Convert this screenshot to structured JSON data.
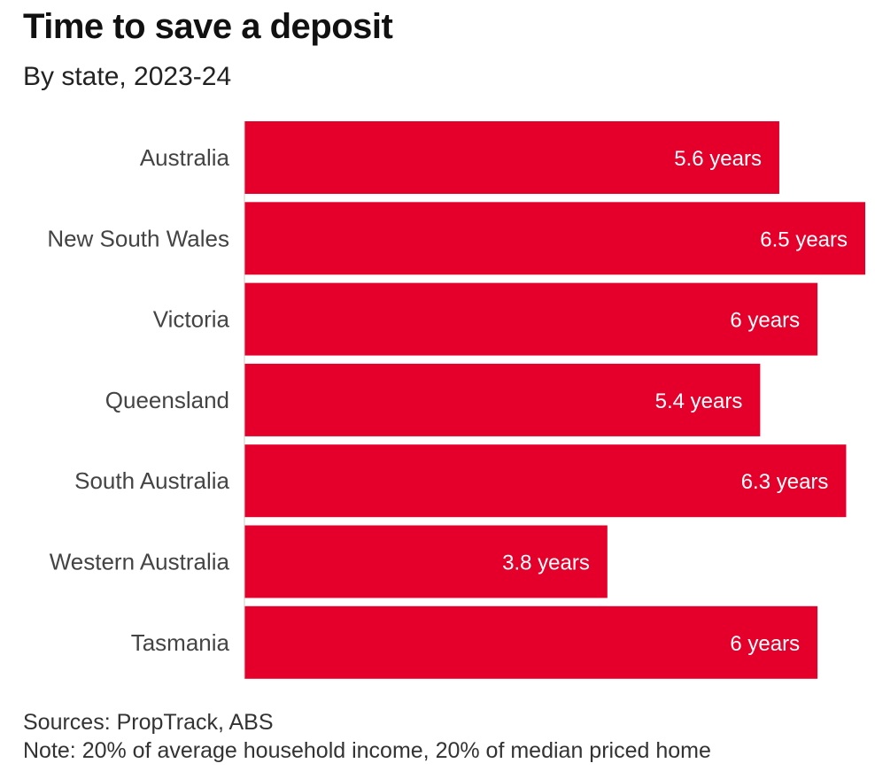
{
  "chart_data": {
    "type": "bar",
    "orientation": "horizontal",
    "title": "Time to save a deposit",
    "subtitle": "By state, 2023-24",
    "categories": [
      "Australia",
      "New South Wales",
      "Victoria",
      "Queensland",
      "South Australia",
      "Western Australia",
      "Tasmania"
    ],
    "values": [
      5.6,
      6.5,
      6,
      5.4,
      6.3,
      3.8,
      6
    ],
    "data_labels": [
      "5.6 years",
      "6.5 years",
      "6 years",
      "5.4 years",
      "6.3 years",
      "3.8 years",
      "6 years"
    ],
    "xlim": [
      0,
      6.5
    ],
    "grid": false,
    "bar_color": "#e4002b",
    "sources": "Sources: PropTrack, ABS",
    "note": "Note: 20% of average household income, 20% of median priced home"
  }
}
